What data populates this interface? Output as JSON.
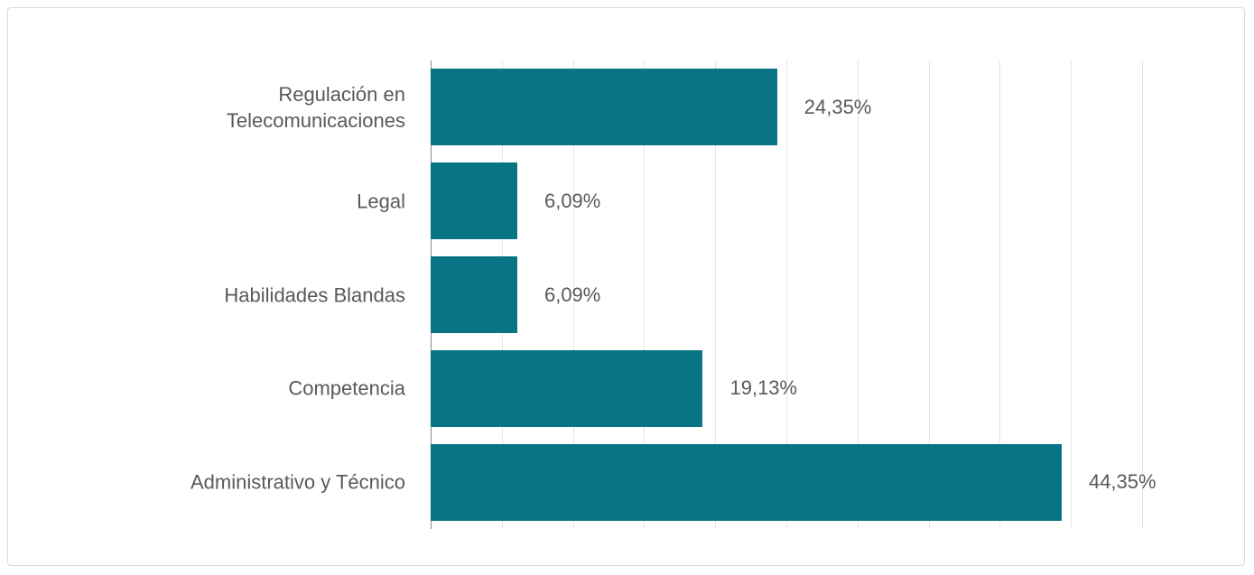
{
  "chart_data": {
    "type": "barh",
    "categories": [
      "Regulación en Telecomunicaciones",
      "Legal",
      "Habilidades Blandas",
      "Competencia",
      "Administrativo y Técnico"
    ],
    "values": [
      24.35,
      6.09,
      6.09,
      19.13,
      44.35
    ],
    "value_labels": [
      "24,35%",
      "6,09%",
      "6,09%",
      "19,13%",
      "44,35%"
    ],
    "color": "#077585",
    "xlim": [
      0,
      50
    ],
    "xticks": [
      0,
      5,
      10,
      15,
      20,
      25,
      30,
      35,
      40,
      45,
      50
    ],
    "grid": true
  }
}
